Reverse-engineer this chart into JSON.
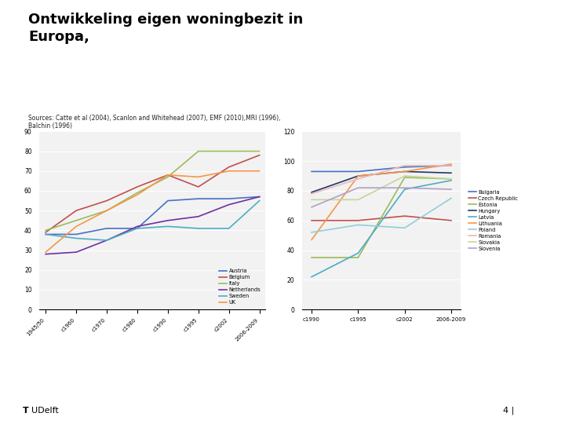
{
  "title": "Ontwikkeling eigen woningbezit in\nEuropa,",
  "subtitle": "Sources: Catte et al (2004), Scanlon and Whitehead (2007), EMF (2010),MRI (1996),\nBalchin (1996)",
  "background_color": "#ffffff",
  "left_chart": {
    "x_labels": [
      "1945/50",
      "c1960",
      "c1970",
      "c1980",
      "c1990",
      "c1995",
      "c2002",
      "2006-2009"
    ],
    "ylim": [
      0,
      90
    ],
    "yticks": [
      0,
      10,
      20,
      30,
      40,
      50,
      60,
      70,
      80,
      90
    ],
    "series": {
      "Austria": {
        "color": "#4472C4",
        "data": [
          38,
          38,
          41,
          41,
          55,
          56,
          56,
          57
        ]
      },
      "Belgium": {
        "color": "#C0504D",
        "data": [
          39,
          50,
          55,
          62,
          68,
          62,
          72,
          78
        ]
      },
      "Italy": {
        "color": "#9BBB59",
        "data": [
          40,
          45,
          50,
          59,
          67,
          80,
          80,
          80
        ]
      },
      "Netherlands": {
        "color": "#7030A0",
        "data": [
          28,
          29,
          35,
          42,
          45,
          47,
          53,
          57
        ]
      },
      "Sweden": {
        "color": "#4BACC6",
        "data": [
          38,
          36,
          35,
          41,
          42,
          41,
          41,
          55
        ]
      },
      "UK": {
        "color": "#F79646",
        "data": [
          29,
          42,
          50,
          58,
          68,
          67,
          70,
          70
        ]
      }
    }
  },
  "right_chart": {
    "x_labels": [
      "c1990",
      "c1995",
      "c2002",
      "2006-2009"
    ],
    "ylim": [
      0,
      120
    ],
    "yticks": [
      0,
      20,
      40,
      60,
      80,
      100,
      120
    ],
    "series": {
      "Bulgaria": {
        "color": "#4472C4",
        "data": [
          93,
          93,
          96,
          97
        ]
      },
      "Czech Republic": {
        "color": "#C0504D",
        "data": [
          60,
          60,
          63,
          60
        ]
      },
      "Estonia": {
        "color": "#9BBB59",
        "data": [
          35,
          35,
          89,
          88
        ]
      },
      "Hungary": {
        "color": "#1F3864",
        "data": [
          79,
          90,
          93,
          92
        ]
      },
      "Latvia": {
        "color": "#4BACC6",
        "data": [
          22,
          38,
          81,
          87
        ]
      },
      "Lithuania": {
        "color": "#F79646",
        "data": [
          47,
          90,
          93,
          98
        ]
      },
      "Poland": {
        "color": "#92CDDC",
        "data": [
          52,
          57,
          55,
          75
        ]
      },
      "Romania": {
        "color": "#E6B9B8",
        "data": [
          78,
          88,
          97,
          97
        ]
      },
      "Slovakia": {
        "color": "#C3D69B",
        "data": [
          74,
          74,
          90,
          88
        ]
      },
      "Slovenia": {
        "color": "#B1A0C7",
        "data": [
          69,
          82,
          82,
          81
        ]
      }
    }
  },
  "footer_text": "4 |",
  "blue_bar_color": "#1F5C99",
  "chart_bg": "#F2F2F2"
}
